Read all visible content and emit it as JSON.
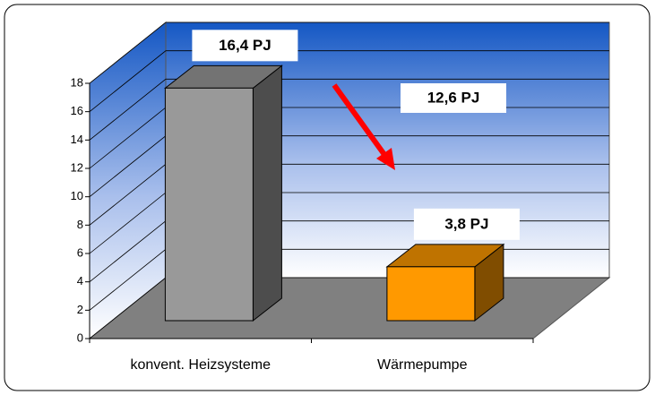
{
  "chart_data": {
    "type": "bar3d",
    "categories": [
      "konvent. Heizsysteme",
      "Wärmepumpe"
    ],
    "values": [
      16.4,
      3.8
    ],
    "value_labels": [
      "16,4 PJ",
      "3,8 PJ"
    ],
    "colors": [
      "#999999",
      "#ff9900"
    ],
    "annotation": "12,6 PJ",
    "ylim": [
      0,
      18
    ],
    "yticks": [
      0,
      2,
      4,
      6,
      8,
      10,
      12,
      14,
      16,
      18
    ],
    "grid": true
  }
}
